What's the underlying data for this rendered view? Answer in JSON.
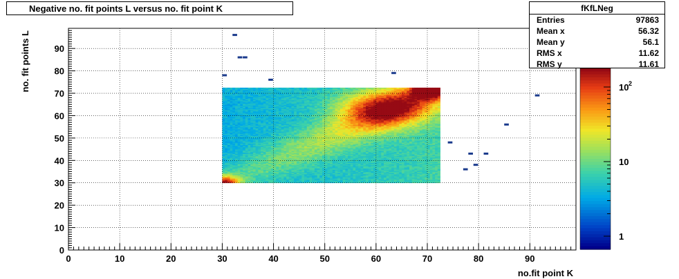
{
  "title": "Negative no. fit points L versus no. fit point K",
  "stats": {
    "name": "fKfLNeg",
    "rows": [
      {
        "label": "Entries",
        "value": "97863"
      },
      {
        "label": "Mean x",
        "value": "56.32"
      },
      {
        "label": "Mean y",
        "value": "56.1"
      },
      {
        "label": "RMS x",
        "value": "11.62"
      },
      {
        "label": "RMS y",
        "value": "11.61"
      }
    ]
  },
  "chart_data": {
    "type": "heatmap",
    "xlabel": "no.fit point K",
    "ylabel": "no. fit points  L",
    "xlim": [
      0,
      99
    ],
    "ylim": [
      0,
      99
    ],
    "x_ticks": [
      "0",
      "10",
      "20",
      "30",
      "40",
      "50",
      "60",
      "70",
      "80",
      "90"
    ],
    "y_ticks": [
      "0",
      "10",
      "20",
      "30",
      "40",
      "50",
      "60",
      "70",
      "80",
      "90"
    ],
    "grid": true,
    "color_scale": "log",
    "colorbar_ticks": [
      "1",
      "10",
      "10^2"
    ],
    "dense_region": {
      "x": [
        30,
        72
      ],
      "y": [
        30,
        72
      ]
    },
    "hot_spots": [
      {
        "x": 61,
        "y": 63,
        "level": "high"
      },
      {
        "x": 70,
        "y": 71,
        "level": "max"
      },
      {
        "x": 30,
        "y": 30,
        "level": "max"
      }
    ],
    "isolated_points": [
      {
        "x": 32,
        "y": 96
      },
      {
        "x": 33,
        "y": 86
      },
      {
        "x": 34,
        "y": 86
      },
      {
        "x": 30,
        "y": 78
      },
      {
        "x": 39,
        "y": 76
      },
      {
        "x": 63,
        "y": 79
      },
      {
        "x": 91,
        "y": 69
      },
      {
        "x": 85,
        "y": 56
      },
      {
        "x": 74,
        "y": 48
      },
      {
        "x": 78,
        "y": 43
      },
      {
        "x": 81,
        "y": 43
      },
      {
        "x": 79,
        "y": 38
      },
      {
        "x": 77,
        "y": 36
      }
    ]
  }
}
